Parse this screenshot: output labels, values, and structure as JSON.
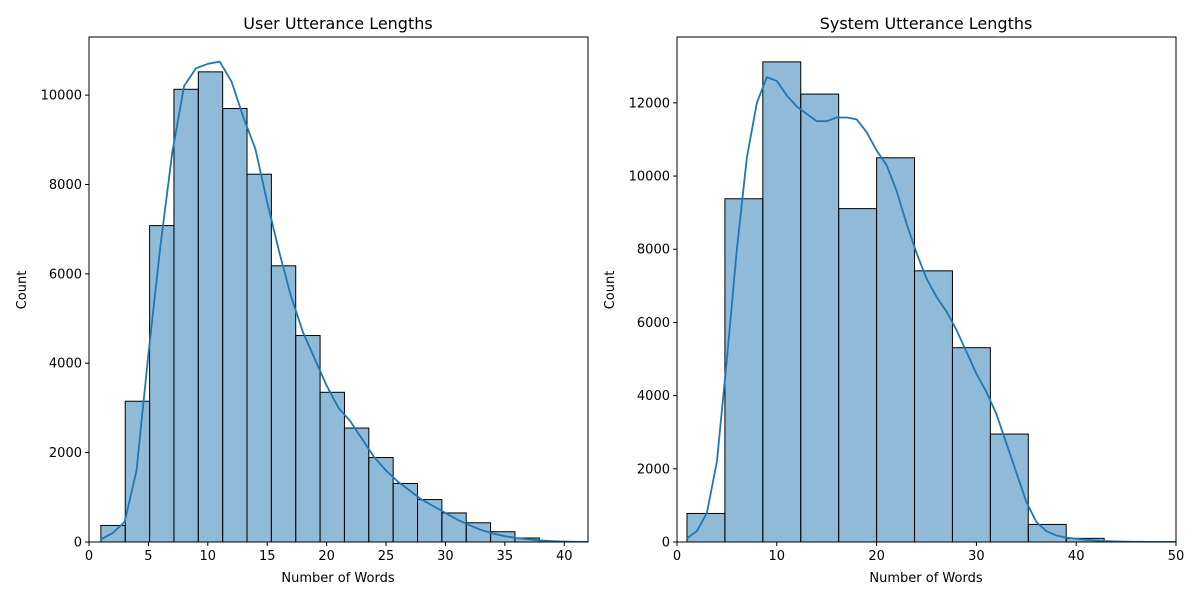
{
  "chart_data": [
    {
      "type": "bar",
      "subtype": "histogram-with-kde",
      "title": "User Utterance Lengths",
      "xlabel": "Number of Words",
      "ylabel": "Count",
      "xlim": [
        0,
        42
      ],
      "ylim": [
        0,
        11300
      ],
      "xticks": [
        0,
        5,
        10,
        15,
        20,
        25,
        30,
        35,
        40
      ],
      "yticks": [
        0,
        2000,
        4000,
        6000,
        8000,
        10000
      ],
      "grid": false,
      "bar_color": "#1f77b4",
      "bar_alpha": 0.5,
      "edge_color": "#000000",
      "kde_color": "#1f77b4",
      "bins": [
        {
          "x0": 1.0,
          "x1": 3.05,
          "count": 370
        },
        {
          "x0": 3.05,
          "x1": 5.1,
          "count": 3150
        },
        {
          "x0": 5.1,
          "x1": 7.15,
          "count": 7080
        },
        {
          "x0": 7.15,
          "x1": 9.2,
          "count": 10130
        },
        {
          "x0": 9.2,
          "x1": 11.25,
          "count": 10520
        },
        {
          "x0": 11.25,
          "x1": 13.3,
          "count": 9700
        },
        {
          "x0": 13.3,
          "x1": 15.35,
          "count": 8230
        },
        {
          "x0": 15.35,
          "x1": 17.4,
          "count": 6180
        },
        {
          "x0": 17.4,
          "x1": 19.45,
          "count": 4620
        },
        {
          "x0": 19.45,
          "x1": 21.5,
          "count": 3350
        },
        {
          "x0": 21.5,
          "x1": 23.55,
          "count": 2550
        },
        {
          "x0": 23.55,
          "x1": 25.6,
          "count": 1890
        },
        {
          "x0": 25.6,
          "x1": 27.65,
          "count": 1310
        },
        {
          "x0": 27.65,
          "x1": 29.7,
          "count": 950
        },
        {
          "x0": 29.7,
          "x1": 31.75,
          "count": 650
        },
        {
          "x0": 31.75,
          "x1": 33.8,
          "count": 430
        },
        {
          "x0": 33.8,
          "x1": 35.85,
          "count": 230
        },
        {
          "x0": 35.85,
          "x1": 37.9,
          "count": 90
        }
      ],
      "kde": {
        "x": [
          1,
          2,
          3,
          4,
          5,
          6,
          7,
          8,
          9,
          10,
          11,
          12,
          13,
          14,
          15,
          16,
          17,
          18,
          19,
          20,
          21,
          22,
          23,
          24,
          25,
          26,
          27,
          28,
          29,
          30,
          31,
          32,
          33,
          34,
          35,
          36,
          37,
          38,
          39,
          40,
          41,
          42
        ],
        "y": [
          60,
          200,
          450,
          1600,
          4200,
          6600,
          8700,
          10200,
          10600,
          10700,
          10750,
          10300,
          9500,
          8800,
          7600,
          6500,
          5500,
          4700,
          4100,
          3500,
          3000,
          2700,
          2300,
          1900,
          1600,
          1350,
          1150,
          950,
          800,
          650,
          500,
          380,
          270,
          190,
          130,
          90,
          60,
          35,
          20,
          10,
          5,
          2
        ]
      }
    },
    {
      "type": "bar",
      "subtype": "histogram-with-kde",
      "title": "System Utterance Lengths",
      "xlabel": "Number of Words",
      "ylabel": "Count",
      "xlim": [
        0,
        50
      ],
      "ylim": [
        0,
        13800
      ],
      "xticks": [
        0,
        10,
        20,
        30,
        40,
        50
      ],
      "yticks": [
        0,
        2000,
        4000,
        6000,
        8000,
        10000,
        12000
      ],
      "grid": false,
      "bar_color": "#1f77b4",
      "bar_alpha": 0.5,
      "edge_color": "#000000",
      "kde_color": "#1f77b4",
      "bins": [
        {
          "x0": 1.0,
          "x1": 4.8,
          "count": 780
        },
        {
          "x0": 4.8,
          "x1": 8.6,
          "count": 9380
        },
        {
          "x0": 8.6,
          "x1": 12.4,
          "count": 13120
        },
        {
          "x0": 12.4,
          "x1": 16.2,
          "count": 12240
        },
        {
          "x0": 16.2,
          "x1": 20.0,
          "count": 9110
        },
        {
          "x0": 20.0,
          "x1": 23.8,
          "count": 10500
        },
        {
          "x0": 23.8,
          "x1": 27.6,
          "count": 7410
        },
        {
          "x0": 27.6,
          "x1": 31.4,
          "count": 5310
        },
        {
          "x0": 31.4,
          "x1": 35.2,
          "count": 2950
        },
        {
          "x0": 35.2,
          "x1": 39.0,
          "count": 480
        },
        {
          "x0": 39.0,
          "x1": 42.8,
          "count": 100
        }
      ],
      "kde": {
        "x": [
          1,
          2,
          3,
          4,
          5,
          6,
          7,
          8,
          9,
          10,
          11,
          12,
          13,
          14,
          15,
          16,
          17,
          18,
          19,
          20,
          21,
          22,
          23,
          24,
          25,
          26,
          27,
          28,
          29,
          30,
          31,
          32,
          33,
          34,
          35,
          36,
          37,
          38,
          39,
          40,
          41,
          42,
          43,
          44,
          45,
          46,
          47,
          48,
          49,
          50
        ],
        "y": [
          100,
          300,
          800,
          2200,
          5000,
          8000,
          10500,
          12000,
          12700,
          12600,
          12200,
          11900,
          11700,
          11500,
          11500,
          11600,
          11600,
          11550,
          11200,
          10700,
          10300,
          9600,
          8700,
          7900,
          7200,
          6700,
          6300,
          5800,
          5200,
          4600,
          4100,
          3500,
          2700,
          1900,
          1100,
          550,
          300,
          180,
          120,
          90,
          60,
          40,
          25,
          15,
          10,
          6,
          4,
          3,
          2,
          1
        ]
      }
    }
  ]
}
